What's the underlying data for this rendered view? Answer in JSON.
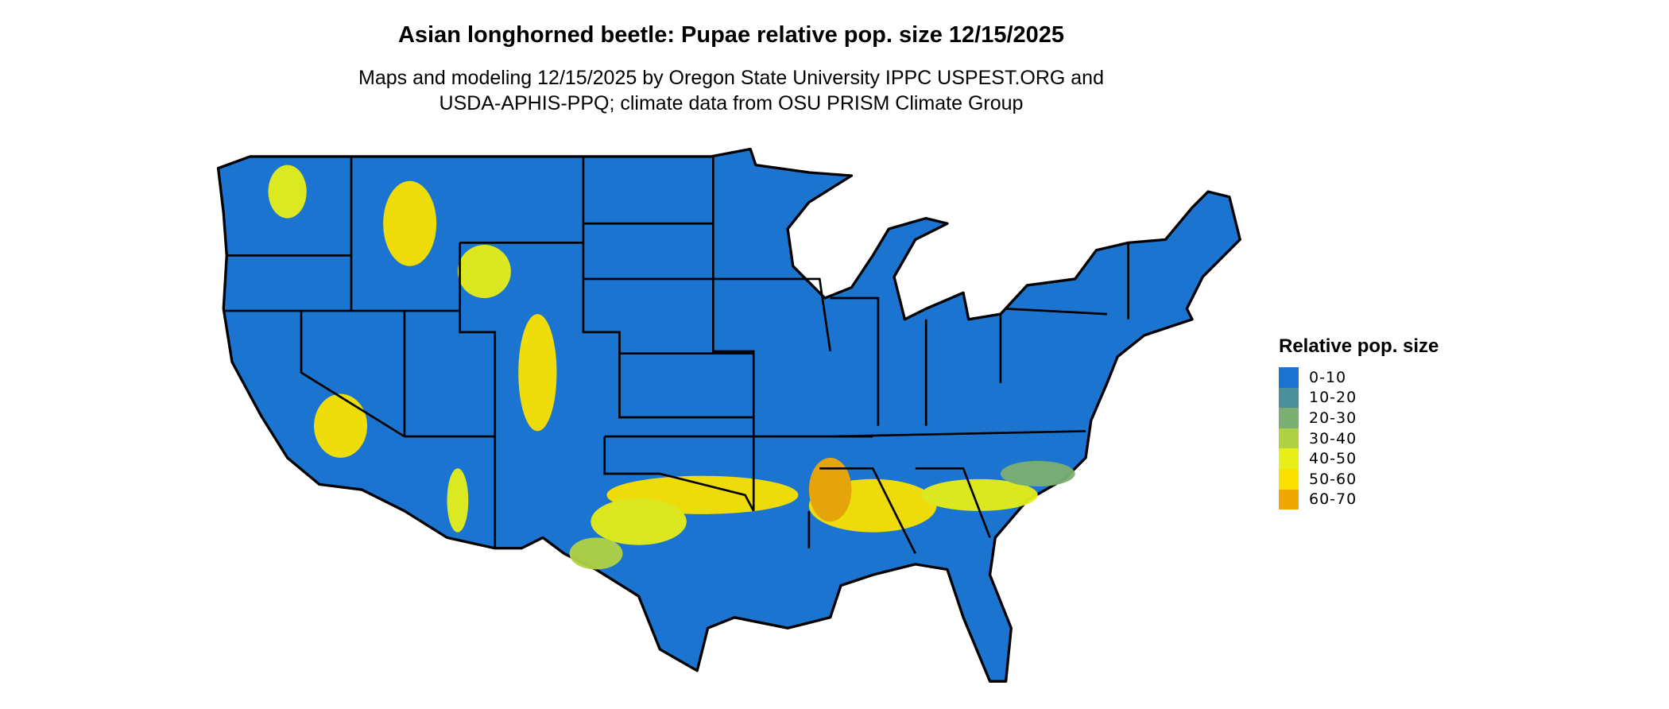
{
  "title": "Asian longhorned beetle: Pupae relative pop. size 12/15/2025",
  "subtitle_lines": [
    "Maps and modeling 12/15/2025 by Oregon State University IPPC USPEST.ORG and",
    "USDA-APHIS-PPQ; climate data from OSU PRISM Climate Group"
  ],
  "legend": {
    "title": "Relative pop. size",
    "placement": "right",
    "items": [
      {
        "label": "0-10",
        "color": "#1b75d0"
      },
      {
        "label": "10-20",
        "color": "#4a909c"
      },
      {
        "label": "20-30",
        "color": "#7caf72"
      },
      {
        "label": "30-40",
        "color": "#b1d144"
      },
      {
        "label": "40-50",
        "color": "#e6ef18"
      },
      {
        "label": "50-60",
        "color": "#fae100"
      },
      {
        "label": "60-70",
        "color": "#f0a800"
      }
    ]
  },
  "map": {
    "region": "Contiguous United States",
    "background_class_color": "#1b75d0",
    "border_color": "#000000"
  }
}
